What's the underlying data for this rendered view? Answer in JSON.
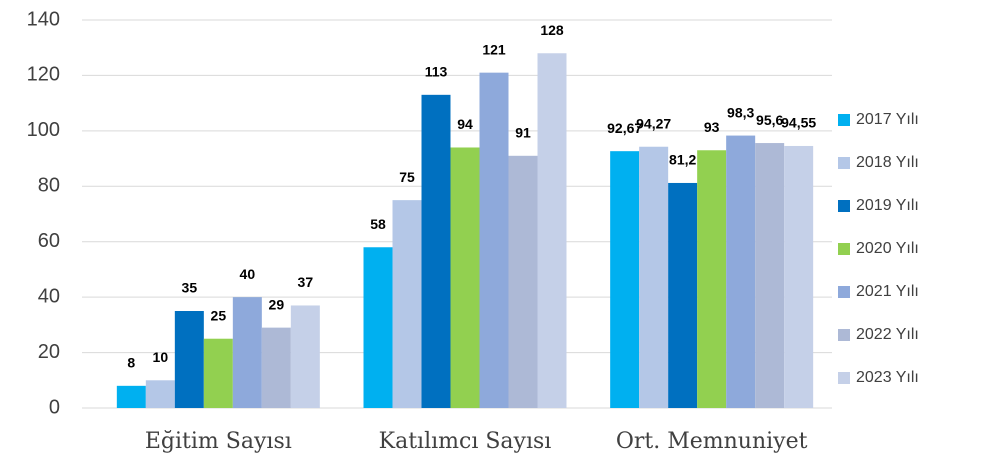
{
  "chart_data": {
    "type": "bar",
    "categories": [
      "Eğitim Sayısı",
      "Katılımcı Sayısı",
      "Ort. Memnuniyet"
    ],
    "series": [
      {
        "name": "2017 Yılı",
        "color": "#00b0f0",
        "values": [
          8,
          58,
          92.67
        ],
        "value_labels": [
          "8",
          "58",
          "92,67"
        ]
      },
      {
        "name": "2018 Yılı",
        "color": "#b4c7e7",
        "values": [
          10,
          75,
          94.27
        ],
        "value_labels": [
          "10",
          "75",
          "94,27"
        ]
      },
      {
        "name": "2019 Yılı",
        "color": "#0070c0",
        "values": [
          35,
          113,
          81.2
        ],
        "value_labels": [
          "35",
          "113",
          "81,2"
        ]
      },
      {
        "name": "2020 Yılı",
        "color": "#92d050",
        "values": [
          25,
          94,
          93
        ],
        "value_labels": [
          "25",
          "94",
          "93"
        ]
      },
      {
        "name": "2021 Yılı",
        "color": "#8ea9db",
        "values": [
          40,
          121,
          98.3
        ],
        "value_labels": [
          "40",
          "121",
          "98,3"
        ]
      },
      {
        "name": "2022 Yılı",
        "color": "#adb9d6",
        "values": [
          29,
          91,
          95.6
        ],
        "value_labels": [
          "29",
          "91",
          "95,6"
        ]
      },
      {
        "name": "2023 Yılı",
        "color": "#c5d0e8",
        "values": [
          37,
          128,
          94.55
        ],
        "value_labels": [
          "37",
          "128",
          "94,55"
        ]
      }
    ],
    "ylim": [
      0,
      140
    ],
    "yticks": [
      0,
      20,
      40,
      60,
      80,
      100,
      120,
      140
    ],
    "grid": true,
    "legend": "right"
  }
}
